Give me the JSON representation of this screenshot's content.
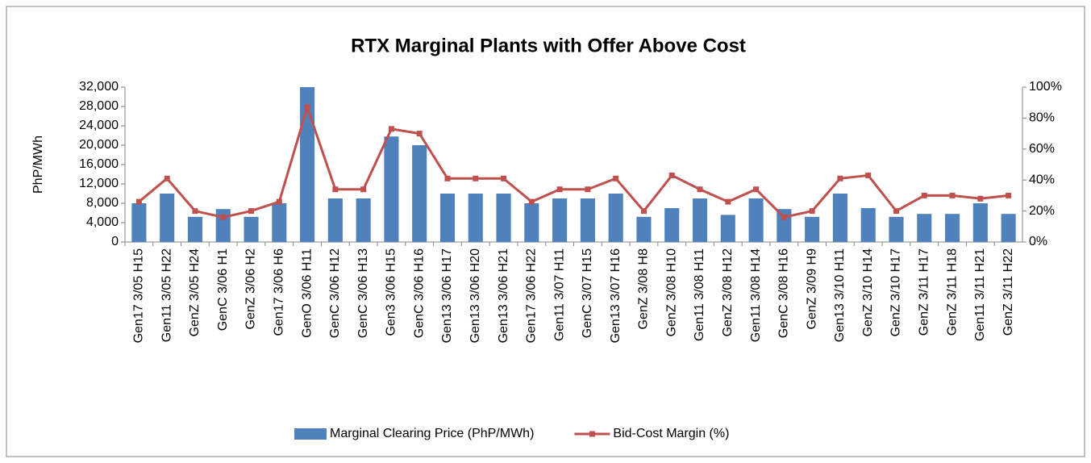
{
  "chart_data": {
    "type": "bar",
    "title": "RTX Marginal Plants with Offer Above Cost",
    "y_label": "PhP/MWh",
    "categories": [
      "Gen17 3/05 H15",
      "Gen11 3/05 H22",
      "GenZ 3/05 H24",
      "GenC 3/06 H1",
      "GenZ 3/06 H2",
      "Gen17 3/06 H6",
      "GenO 3/06 H11",
      "GenC 3/06 H12",
      "GenC 3/06 H13",
      "Gen3 3/06 H15",
      "GenC 3/06 H16",
      "Gen13 3/06 H17",
      "Gen13 3/06 H20",
      "Gen13 3/06 H21",
      "Gen17 3/06 H22",
      "Gen11 3/07 H11",
      "GenC 3/07 H15",
      "Gen13 3/07 H16",
      "GenZ 3/08 H8",
      "GenZ 3/08 H10",
      "Gen11 3/08 H11",
      "GenZ 3/08 H12",
      "Gen11 3/08 H14",
      "GenC 3/08 H16",
      "GenZ 3/09 H9",
      "Gen13 3/10 H11",
      "GenZ 3/10 H14",
      "GenZ 3/10 H17",
      "GenZ 3/11 H17",
      "GenZ 3/11 H18",
      "Gen11 3/11 H21",
      "GenZ 3/11 H22"
    ],
    "series": [
      {
        "name": "Marginal Clearing Price (PhP/MWh)",
        "type": "bar",
        "color": "#4f81bd",
        "values": [
          8000,
          10000,
          5200,
          6800,
          5200,
          8000,
          32000,
          9000,
          9000,
          21800,
          20000,
          10000,
          10000,
          10000,
          8000,
          9000,
          9000,
          10000,
          5200,
          7000,
          9000,
          5600,
          9000,
          6800,
          5200,
          10000,
          7000,
          5200,
          5800,
          5800,
          8000,
          5800
        ]
      },
      {
        "name": "Bid-Cost Margin (%)",
        "type": "line",
        "axis": "y2",
        "color": "#c0504d",
        "values": [
          26,
          41,
          20,
          16,
          20,
          26,
          87,
          34,
          34,
          73,
          70,
          41,
          41,
          41,
          26,
          34,
          34,
          41,
          20,
          43,
          34,
          26,
          34,
          16,
          20,
          41,
          43,
          20,
          30,
          30,
          28,
          30
        ]
      }
    ],
    "ylim": [
      0,
      32000
    ],
    "yticks": [
      0,
      {
        "value": 4000,
        "label": "4,000"
      },
      {
        "value": 8000,
        "label": "8,000"
      },
      {
        "value": 12000,
        "label": "12,000"
      },
      {
        "value": 16000,
        "label": "16,000"
      },
      {
        "value": 20000,
        "label": "20,000"
      },
      {
        "value": 24000,
        "label": "24,000"
      },
      {
        "value": 28000,
        "label": "28,000"
      },
      {
        "value": 32000,
        "label": "32,000"
      }
    ],
    "y2lim": [
      0,
      100
    ],
    "y2ticks": [
      {
        "value": 0,
        "label": "0%"
      },
      {
        "value": 20,
        "label": "20%"
      },
      {
        "value": 40,
        "label": "40%"
      },
      {
        "value": 60,
        "label": "60%"
      },
      {
        "value": 80,
        "label": "80%"
      },
      {
        "value": 100,
        "label": "100%"
      }
    ],
    "legend": "bottom"
  }
}
